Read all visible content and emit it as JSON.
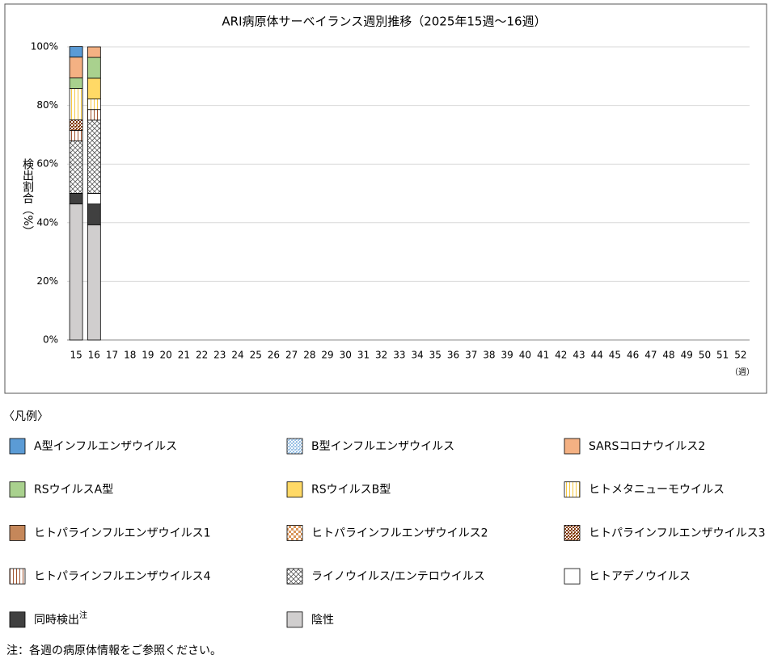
{
  "chart_data": {
    "type": "stacked_bar",
    "title": "ARI病原体サーベイランス週別推移（2025年15週～16週）",
    "y_label": "検出割合（%）",
    "x_unit": "（週）",
    "legend_title": "〈凡例〉",
    "legend_note": "注",
    "footnote": "注：各週の病原体情報をご参照ください。",
    "categories": [
      "15",
      "16",
      "17",
      "18",
      "19",
      "20",
      "21",
      "22",
      "23",
      "24",
      "25",
      "26",
      "27",
      "28",
      "29",
      "30",
      "31",
      "32",
      "33",
      "34",
      "35",
      "36",
      "37",
      "38",
      "39",
      "40",
      "41",
      "42",
      "43",
      "44",
      "45",
      "46",
      "47",
      "48",
      "49",
      "50",
      "51",
      "52"
    ],
    "ylim": [
      0,
      100
    ],
    "yticks": [
      {
        "value": 0,
        "label": "0%"
      },
      {
        "value": 20,
        "label": "20%"
      },
      {
        "value": 40,
        "label": "40%"
      },
      {
        "value": 60,
        "label": "60%"
      },
      {
        "value": 80,
        "label": "80%"
      },
      {
        "value": 100,
        "label": "100%"
      }
    ],
    "grid": true,
    "series": [
      {
        "name": "A型インフルエンザウイルス",
        "color": "#5b9bd5",
        "pattern": "solid",
        "values": [
          3.6,
          0,
          null,
          null,
          null,
          null,
          null,
          null,
          null,
          null,
          null,
          null,
          null,
          null,
          null,
          null,
          null,
          null,
          null,
          null,
          null,
          null,
          null,
          null,
          null,
          null,
          null,
          null,
          null,
          null,
          null,
          null,
          null,
          null,
          null,
          null,
          null,
          null
        ]
      },
      {
        "name": "B型インフルエンザウイルス",
        "color": "#9dc3e6",
        "pattern": "dots",
        "values": [
          0,
          0,
          null,
          null,
          null,
          null,
          null,
          null,
          null,
          null,
          null,
          null,
          null,
          null,
          null,
          null,
          null,
          null,
          null,
          null,
          null,
          null,
          null,
          null,
          null,
          null,
          null,
          null,
          null,
          null,
          null,
          null,
          null,
          null,
          null,
          null,
          null,
          null
        ]
      },
      {
        "name": "SARSコロナウイルス2",
        "color": "#f4b183",
        "pattern": "solid",
        "values": [
          7.1,
          3.6,
          null,
          null,
          null,
          null,
          null,
          null,
          null,
          null,
          null,
          null,
          null,
          null,
          null,
          null,
          null,
          null,
          null,
          null,
          null,
          null,
          null,
          null,
          null,
          null,
          null,
          null,
          null,
          null,
          null,
          null,
          null,
          null,
          null,
          null,
          null,
          null
        ]
      },
      {
        "name": "RSウイルスA型",
        "color": "#a9d18e",
        "pattern": "solid",
        "values": [
          3.6,
          7.1,
          null,
          null,
          null,
          null,
          null,
          null,
          null,
          null,
          null,
          null,
          null,
          null,
          null,
          null,
          null,
          null,
          null,
          null,
          null,
          null,
          null,
          null,
          null,
          null,
          null,
          null,
          null,
          null,
          null,
          null,
          null,
          null,
          null,
          null,
          null,
          null
        ]
      },
      {
        "name": "RSウイルスB型",
        "color": "#ffd966",
        "pattern": "solid",
        "values": [
          0,
          7.1,
          null,
          null,
          null,
          null,
          null,
          null,
          null,
          null,
          null,
          null,
          null,
          null,
          null,
          null,
          null,
          null,
          null,
          null,
          null,
          null,
          null,
          null,
          null,
          null,
          null,
          null,
          null,
          null,
          null,
          null,
          null,
          null,
          null,
          null,
          null,
          null
        ]
      },
      {
        "name": "ヒトメタニューモウイルス",
        "color": "#f5c842",
        "pattern": "vstripes",
        "values": [
          10.7,
          3.6,
          null,
          null,
          null,
          null,
          null,
          null,
          null,
          null,
          null,
          null,
          null,
          null,
          null,
          null,
          null,
          null,
          null,
          null,
          null,
          null,
          null,
          null,
          null,
          null,
          null,
          null,
          null,
          null,
          null,
          null,
          null,
          null,
          null,
          null,
          null,
          null
        ]
      },
      {
        "name": "ヒトパラインフルエンザウイルス1",
        "color": "#c5875a",
        "pattern": "solid",
        "values": [
          0,
          0,
          null,
          null,
          null,
          null,
          null,
          null,
          null,
          null,
          null,
          null,
          null,
          null,
          null,
          null,
          null,
          null,
          null,
          null,
          null,
          null,
          null,
          null,
          null,
          null,
          null,
          null,
          null,
          null,
          null,
          null,
          null,
          null,
          null,
          null,
          null,
          null
        ]
      },
      {
        "name": "ヒトパラインフルエンザウイルス2",
        "color": "#d9955a",
        "pattern": "checker",
        "values": [
          0,
          0,
          null,
          null,
          null,
          null,
          null,
          null,
          null,
          null,
          null,
          null,
          null,
          null,
          null,
          null,
          null,
          null,
          null,
          null,
          null,
          null,
          null,
          null,
          null,
          null,
          null,
          null,
          null,
          null,
          null,
          null,
          null,
          null,
          null,
          null,
          null,
          null
        ]
      },
      {
        "name": "ヒトパラインフルエンザウイルス3",
        "color": "#843c0c",
        "pattern": "dots",
        "values": [
          3.6,
          0,
          null,
          null,
          null,
          null,
          null,
          null,
          null,
          null,
          null,
          null,
          null,
          null,
          null,
          null,
          null,
          null,
          null,
          null,
          null,
          null,
          null,
          null,
          null,
          null,
          null,
          null,
          null,
          null,
          null,
          null,
          null,
          null,
          null,
          null,
          null,
          null
        ]
      },
      {
        "name": "ヒトパラインフルエンザウイルス4",
        "color": "#a0522d",
        "pattern": "vstripes",
        "values": [
          3.6,
          3.6,
          null,
          null,
          null,
          null,
          null,
          null,
          null,
          null,
          null,
          null,
          null,
          null,
          null,
          null,
          null,
          null,
          null,
          null,
          null,
          null,
          null,
          null,
          null,
          null,
          null,
          null,
          null,
          null,
          null,
          null,
          null,
          null,
          null,
          null,
          null,
          null
        ]
      },
      {
        "name": "ライノウイルス/エンテロウイルス",
        "color": "#595959",
        "pattern": "crosshatch",
        "values": [
          17.9,
          25,
          null,
          null,
          null,
          null,
          null,
          null,
          null,
          null,
          null,
          null,
          null,
          null,
          null,
          null,
          null,
          null,
          null,
          null,
          null,
          null,
          null,
          null,
          null,
          null,
          null,
          null,
          null,
          null,
          null,
          null,
          null,
          null,
          null,
          null,
          null,
          null
        ]
      },
      {
        "name": "ヒトアデノウイルス",
        "color": "#ffffff",
        "pattern": "solid",
        "values": [
          0,
          3.6,
          null,
          null,
          null,
          null,
          null,
          null,
          null,
          null,
          null,
          null,
          null,
          null,
          null,
          null,
          null,
          null,
          null,
          null,
          null,
          null,
          null,
          null,
          null,
          null,
          null,
          null,
          null,
          null,
          null,
          null,
          null,
          null,
          null,
          null,
          null,
          null
        ]
      },
      {
        "name": "同時検出",
        "color": "#404040",
        "pattern": "solid",
        "values": [
          3.6,
          7.1,
          null,
          null,
          null,
          null,
          null,
          null,
          null,
          null,
          null,
          null,
          null,
          null,
          null,
          null,
          null,
          null,
          null,
          null,
          null,
          null,
          null,
          null,
          null,
          null,
          null,
          null,
          null,
          null,
          null,
          null,
          null,
          null,
          null,
          null,
          null,
          null
        ]
      },
      {
        "name": "陰性",
        "color": "#d0cece",
        "pattern": "solid",
        "values": [
          46.4,
          39.3,
          null,
          null,
          null,
          null,
          null,
          null,
          null,
          null,
          null,
          null,
          null,
          null,
          null,
          null,
          null,
          null,
          null,
          null,
          null,
          null,
          null,
          null,
          null,
          null,
          null,
          null,
          null,
          null,
          null,
          null,
          null,
          null,
          null,
          null,
          null,
          null
        ]
      }
    ]
  }
}
